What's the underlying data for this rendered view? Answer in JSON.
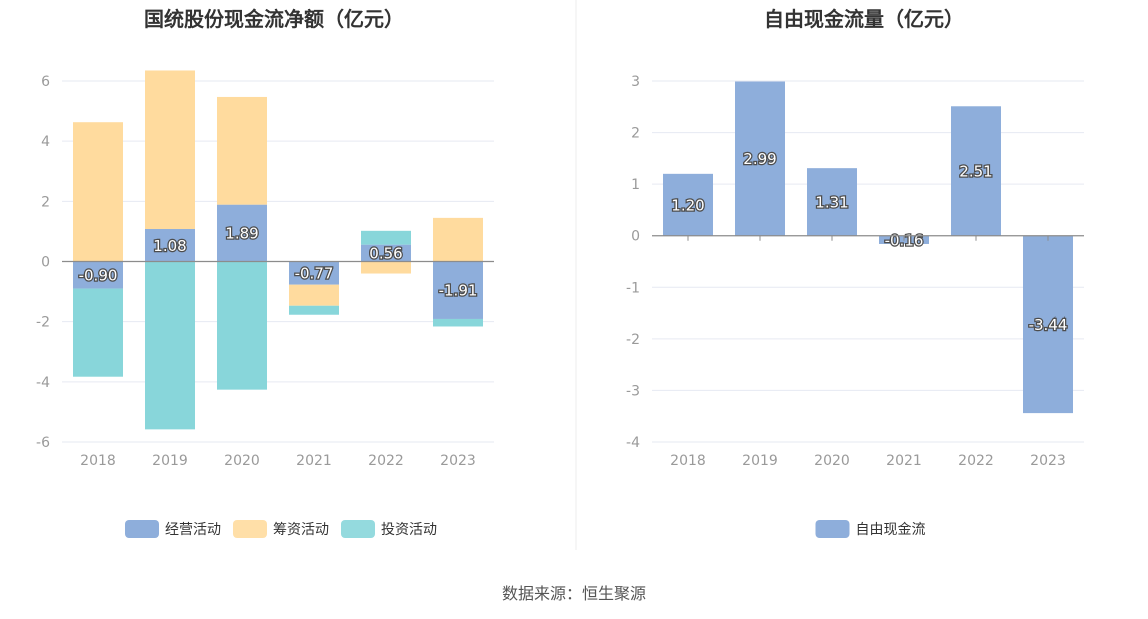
{
  "footer": {
    "source": "数据来源：恒生聚源"
  },
  "chart_data": [
    {
      "type": "bar",
      "stacked": true,
      "title": "国统股份现金流净额（亿元）",
      "categories": [
        "2018",
        "2019",
        "2020",
        "2021",
        "2022",
        "2023"
      ],
      "ylim": [
        -6,
        6
      ],
      "yticks": [
        6,
        4,
        2,
        0,
        -2,
        -4,
        -6
      ],
      "grid": true,
      "legend_position": "bottom",
      "series": [
        {
          "name": "经营活动",
          "color": "#8eaedb",
          "values": [
            -0.9,
            1.08,
            1.89,
            -0.77,
            0.56,
            -1.91
          ],
          "labels": [
            "-0.90",
            "1.08",
            "1.89",
            "-0.77",
            "0.56",
            "-1.91"
          ]
        },
        {
          "name": "筹资活动",
          "color": "#ffdb9e",
          "values": [
            4.63,
            5.27,
            3.58,
            -0.7,
            -0.4,
            1.45
          ]
        },
        {
          "name": "投资活动",
          "color": "#88d6da",
          "values": [
            -2.93,
            -5.58,
            -4.26,
            -0.3,
            0.46,
            -0.25
          ]
        }
      ]
    },
    {
      "type": "bar",
      "title": "自由现金流量（亿元）",
      "categories": [
        "2018",
        "2019",
        "2020",
        "2021",
        "2022",
        "2023"
      ],
      "ylim": [
        -4,
        3
      ],
      "yticks": [
        3,
        2,
        1,
        0,
        -1,
        -2,
        -3,
        -4
      ],
      "grid": true,
      "legend_position": "bottom",
      "series": [
        {
          "name": "自由现金流",
          "color": "#8eaedb",
          "values": [
            1.2,
            2.99,
            1.31,
            -0.16,
            2.51,
            -3.44
          ],
          "labels": [
            "1.20",
            "2.99",
            "1.31",
            "-0.16",
            "2.51",
            "-3.44"
          ]
        }
      ]
    }
  ]
}
